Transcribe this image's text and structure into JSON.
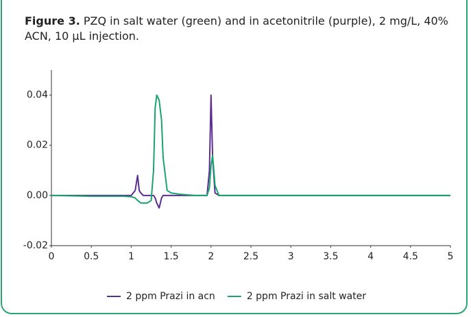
{
  "chart_data": {
    "type": "line",
    "caption_label": "Figure 3.",
    "caption": "PZQ in salt water (green) and in acetonitrile (purple), 2 mg/L, 40% ACN, 10 µL injection.",
    "x": [
      0,
      0.5,
      0.9,
      1.0,
      1.05,
      1.08,
      1.1,
      1.12,
      1.15,
      1.2,
      1.25,
      1.28,
      1.3,
      1.32,
      1.35,
      1.38,
      1.4,
      1.45,
      1.5,
      1.6,
      1.8,
      1.95,
      1.98,
      2.0,
      2.02,
      2.05,
      2.1,
      2.5,
      3,
      4,
      5
    ],
    "series": [
      {
        "name": "2 ppm Prazi in acn",
        "color": "#5b2d90",
        "values": [
          0,
          0,
          0,
          0,
          0.002,
          0.008,
          0.002,
          0.001,
          0,
          0,
          0,
          0,
          -0.001,
          -0.003,
          -0.005,
          -0.001,
          0,
          0,
          0,
          0,
          0,
          0,
          0.01,
          0.04,
          0.015,
          0.001,
          0,
          0,
          0,
          0,
          0
        ]
      },
      {
        "name": "2 ppm Prazi in salt water",
        "color": "#1aa36f",
        "values": [
          0,
          -0.0003,
          -0.0003,
          -0.0005,
          -0.001,
          -0.002,
          -0.0025,
          -0.003,
          -0.003,
          -0.003,
          -0.002,
          0.01,
          0.035,
          0.04,
          0.038,
          0.03,
          0.015,
          0.002,
          0.001,
          0.0005,
          0,
          0,
          0.003,
          0.012,
          0.016,
          0.004,
          0,
          0,
          0,
          0,
          0
        ]
      }
    ],
    "xlim": [
      0,
      5
    ],
    "xticks": [
      0,
      0.5,
      1,
      1.5,
      2,
      2.5,
      3,
      3.5,
      4,
      4.5,
      5
    ],
    "ylim": [
      -0.02,
      0.05
    ],
    "yticks": [
      -0.02,
      {
        "value": 0,
        "label": "0.00"
      },
      0.02,
      0.04
    ],
    "grid": false,
    "legend": "bottom"
  }
}
